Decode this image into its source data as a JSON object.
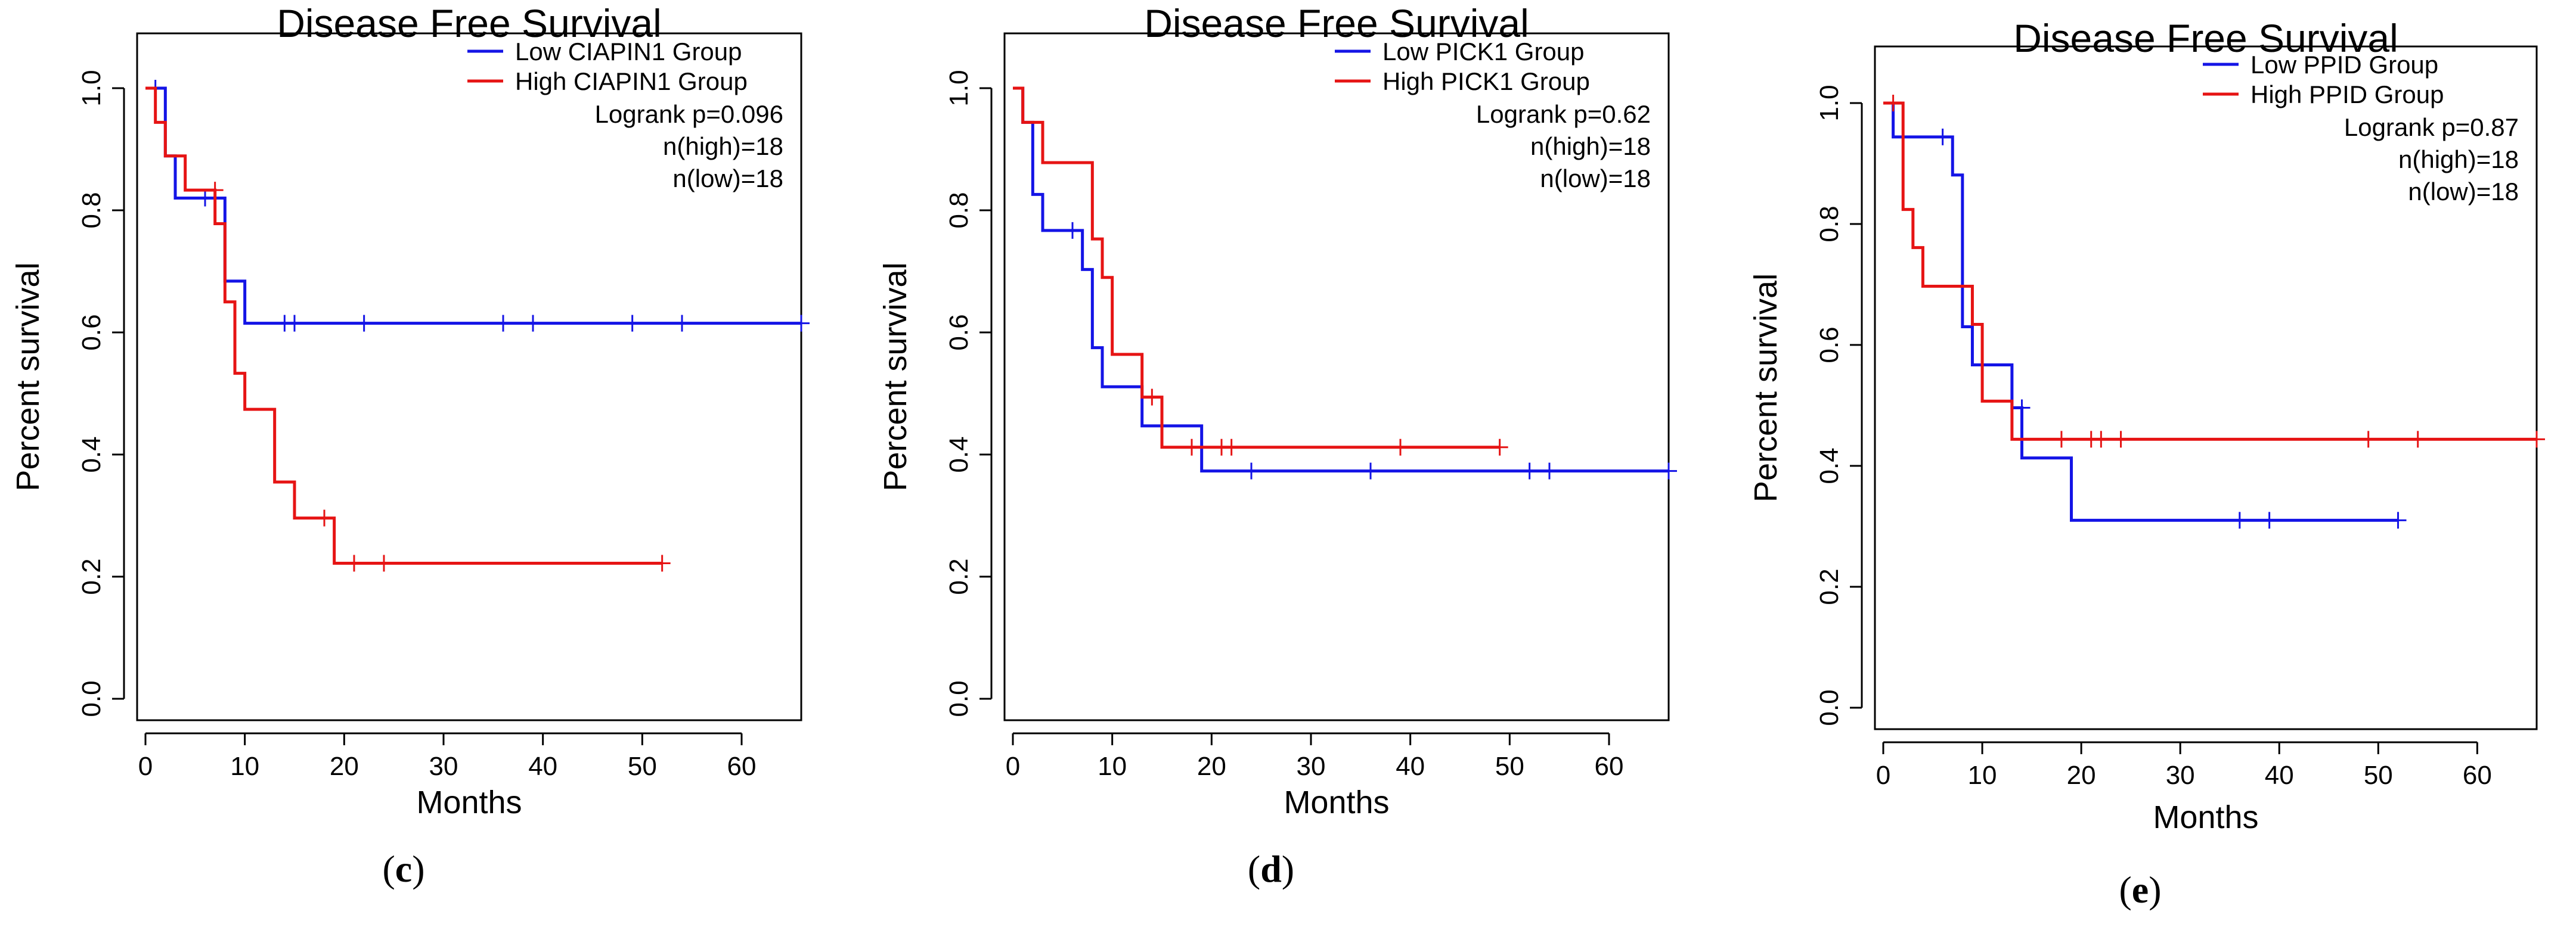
{
  "chart_data": [
    {
      "type": "line",
      "panel_label": "c",
      "title": "Disease Free Survival",
      "xlabel": "Months",
      "ylabel": "Percent survival",
      "xlim": [
        0,
        66
      ],
      "ylim": [
        0,
        1
      ],
      "xticks": [
        "0",
        "10",
        "20",
        "30",
        "40",
        "50",
        "60"
      ],
      "yticks": [
        "0.0",
        "0.2",
        "0.4",
        "0.6",
        "0.8",
        "1.0"
      ],
      "xtick_values": [
        0,
        10,
        20,
        30,
        40,
        50,
        60
      ],
      "ytick_values": [
        0,
        0.2,
        0.4,
        0.6,
        0.8,
        1.0
      ],
      "legend_position": "top-right",
      "annotations": [
        "Logrank p=0.096",
        "n(high)=18",
        "n(low)=18"
      ],
      "series": [
        {
          "name": "Low CIAPIN1 Group",
          "color": "#1414e6",
          "steps": [
            [
              0,
              1.0
            ],
            [
              2,
              0.889
            ],
            [
              3,
              0.82
            ],
            [
              8,
              0.684
            ],
            [
              10,
              0.615
            ]
          ],
          "end_x": 66,
          "censored": [
            [
              1,
              1.0
            ],
            [
              6,
              0.82
            ],
            [
              14,
              0.615
            ],
            [
              15,
              0.615
            ],
            [
              22,
              0.615
            ],
            [
              36,
              0.615
            ],
            [
              39,
              0.615
            ],
            [
              49,
              0.615
            ],
            [
              54,
              0.615
            ],
            [
              66,
              0.615
            ]
          ]
        },
        {
          "name": "High CIAPIN1 Group",
          "color": "#e61414",
          "steps": [
            [
              0,
              1.0
            ],
            [
              1,
              0.944
            ],
            [
              2,
              0.889
            ],
            [
              4,
              0.833
            ],
            [
              7,
              0.778
            ],
            [
              8,
              0.65
            ],
            [
              9,
              0.533
            ],
            [
              10,
              0.474
            ],
            [
              13,
              0.355
            ],
            [
              15,
              0.296
            ],
            [
              19,
              0.222
            ]
          ],
          "end_x": 52,
          "censored": [
            [
              7,
              0.833
            ],
            [
              18,
              0.296
            ],
            [
              21,
              0.222
            ],
            [
              24,
              0.222
            ],
            [
              52,
              0.222
            ]
          ]
        }
      ]
    },
    {
      "type": "line",
      "panel_label": "d",
      "title": "Disease Free Survival",
      "xlabel": "Months",
      "ylabel": "Percent survival",
      "xlim": [
        0,
        66
      ],
      "ylim": [
        0,
        1
      ],
      "xticks": [
        "0",
        "10",
        "20",
        "30",
        "40",
        "50",
        "60"
      ],
      "yticks": [
        "0.0",
        "0.2",
        "0.4",
        "0.6",
        "0.8",
        "1.0"
      ],
      "xtick_values": [
        0,
        10,
        20,
        30,
        40,
        50,
        60
      ],
      "ytick_values": [
        0,
        0.2,
        0.4,
        0.6,
        0.8,
        1.0
      ],
      "legend_position": "top-right",
      "annotations": [
        "Logrank p=0.62",
        "n(high)=18",
        "n(low)=18"
      ],
      "series": [
        {
          "name": "Low PICK1 Group",
          "color": "#1414e6",
          "steps": [
            [
              0,
              1.0
            ],
            [
              1,
              0.944
            ],
            [
              2,
              0.826
            ],
            [
              3,
              0.767
            ],
            [
              7,
              0.703
            ],
            [
              8,
              0.575
            ],
            [
              9,
              0.511
            ],
            [
              13,
              0.447
            ],
            [
              19,
              0.373
            ]
          ],
          "end_x": 66,
          "censored": [
            [
              6,
              0.767
            ],
            [
              24,
              0.373
            ],
            [
              36,
              0.373
            ],
            [
              52,
              0.373
            ],
            [
              54,
              0.373
            ],
            [
              66,
              0.373
            ]
          ]
        },
        {
          "name": "High PICK1 Group",
          "color": "#e61414",
          "steps": [
            [
              0,
              1.0
            ],
            [
              1,
              0.944
            ],
            [
              3,
              0.878
            ],
            [
              8,
              0.753
            ],
            [
              9,
              0.69
            ],
            [
              10,
              0.564
            ],
            [
              13,
              0.494
            ],
            [
              15,
              0.412
            ]
          ],
          "end_x": 49,
          "censored": [
            [
              14,
              0.494
            ],
            [
              18,
              0.412
            ],
            [
              21,
              0.412
            ],
            [
              22,
              0.412
            ],
            [
              39,
              0.412
            ],
            [
              49,
              0.412
            ]
          ]
        }
      ]
    },
    {
      "type": "line",
      "panel_label": "e",
      "title": "Disease Free Survival",
      "xlabel": "Months",
      "ylabel": "Percent survival",
      "xlim": [
        0,
        66
      ],
      "ylim": [
        0,
        1
      ],
      "xticks": [
        "0",
        "10",
        "20",
        "30",
        "40",
        "50",
        "60"
      ],
      "yticks": [
        "0.0",
        "0.2",
        "0.4",
        "0.6",
        "0.8",
        "1.0"
      ],
      "xtick_values": [
        0,
        10,
        20,
        30,
        40,
        50,
        60
      ],
      "ytick_values": [
        0,
        0.2,
        0.4,
        0.6,
        0.8,
        1.0
      ],
      "legend_position": "top-right",
      "annotations": [
        "Logrank p=0.87",
        "n(high)=18",
        "n(low)=18"
      ],
      "series": [
        {
          "name": "Low PPID Group",
          "color": "#1414e6",
          "steps": [
            [
              0,
              1.0
            ],
            [
              1,
              0.944
            ],
            [
              7,
              0.881
            ],
            [
              8,
              0.63
            ],
            [
              9,
              0.567
            ],
            [
              13,
              0.496
            ],
            [
              14,
              0.413
            ],
            [
              19,
              0.31
            ]
          ],
          "end_x": 52,
          "censored": [
            [
              6,
              0.944
            ],
            [
              14,
              0.496
            ],
            [
              36,
              0.31
            ],
            [
              39,
              0.31
            ],
            [
              52,
              0.31
            ]
          ]
        },
        {
          "name": "High PPID Group",
          "color": "#e61414",
          "steps": [
            [
              0,
              1.0
            ],
            [
              2,
              0.824
            ],
            [
              3,
              0.761
            ],
            [
              4,
              0.697
            ],
            [
              9,
              0.634
            ],
            [
              10,
              0.507
            ],
            [
              13,
              0.444
            ]
          ],
          "end_x": 66,
          "censored": [
            [
              1,
              1.0
            ],
            [
              18,
              0.444
            ],
            [
              21,
              0.444
            ],
            [
              22,
              0.444
            ],
            [
              24,
              0.444
            ],
            [
              49,
              0.444
            ],
            [
              54,
              0.444
            ],
            [
              66,
              0.444
            ]
          ]
        }
      ]
    }
  ]
}
